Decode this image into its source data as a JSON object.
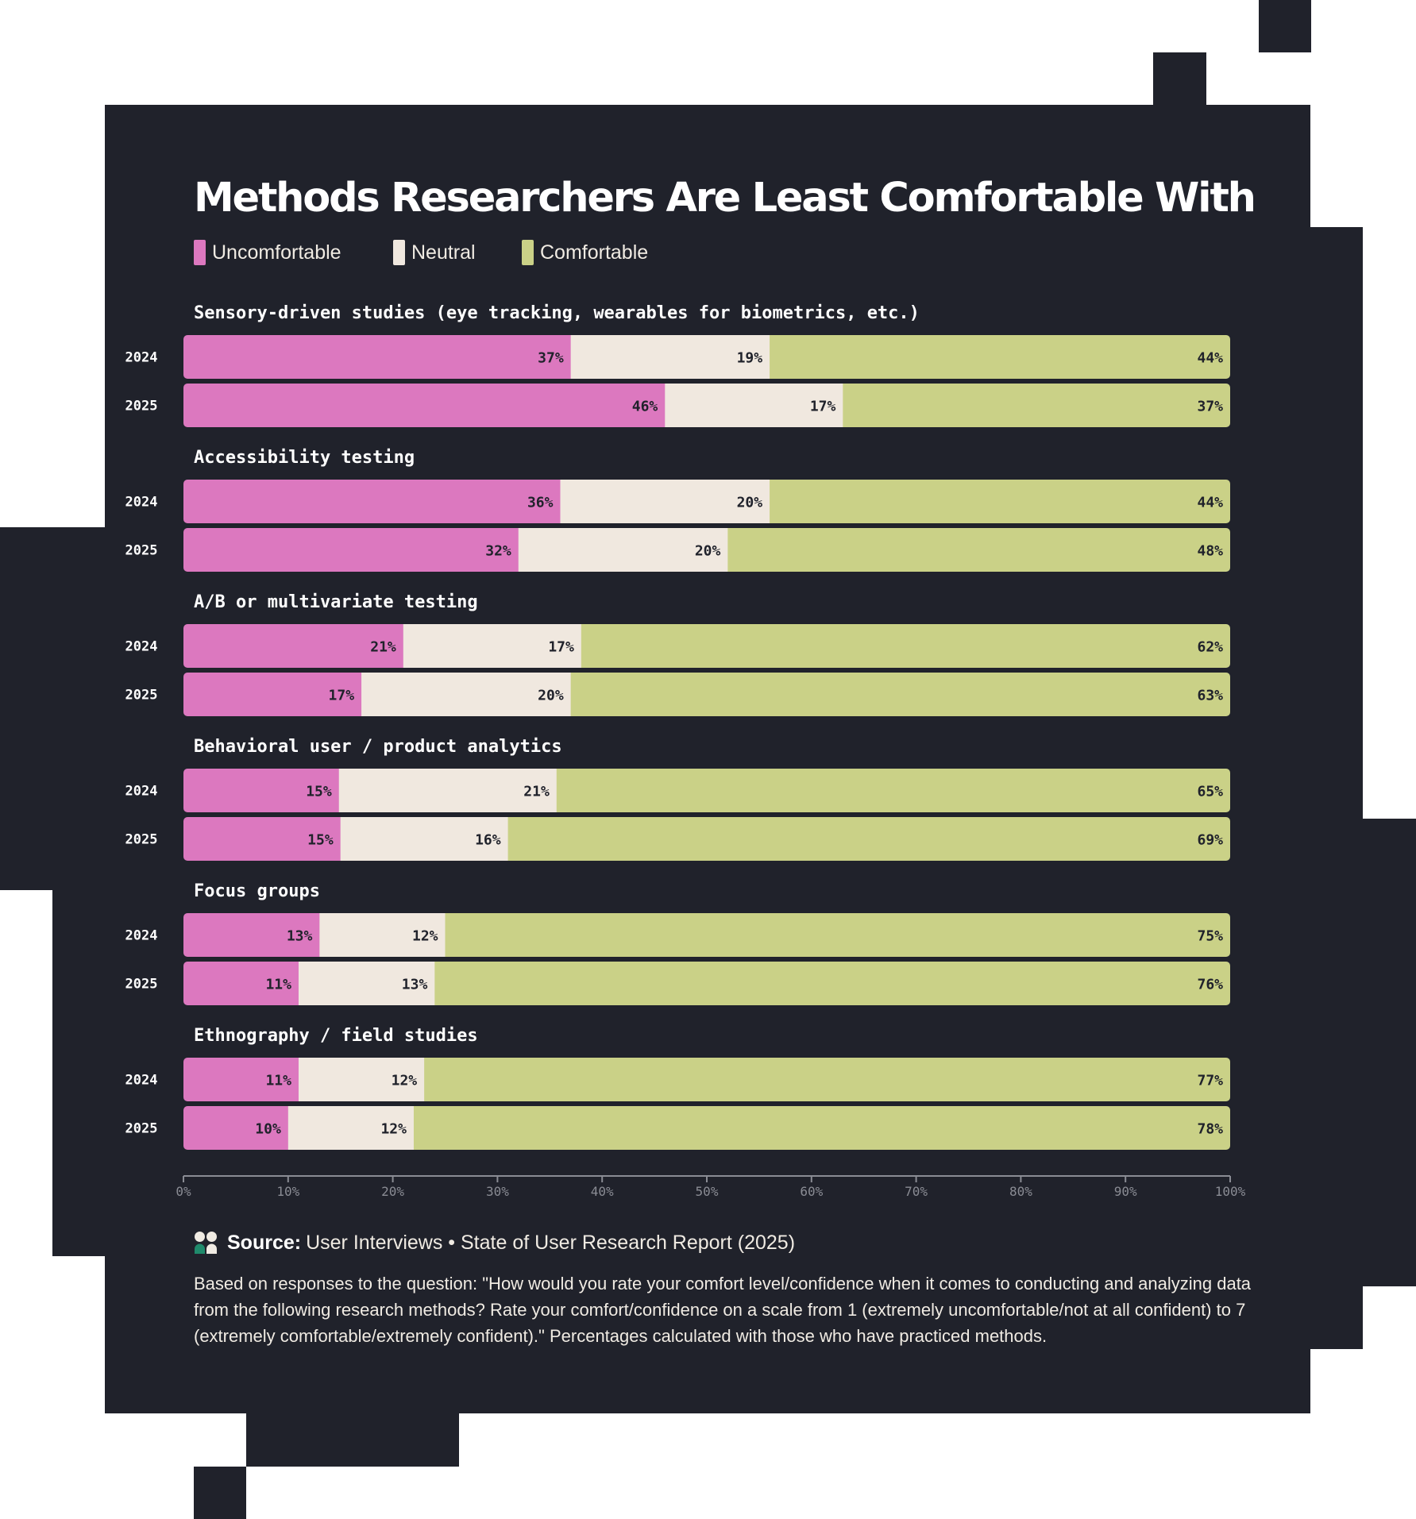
{
  "title": "Methods Researchers Are Least Comfortable With",
  "legend": [
    {
      "label": "Uncomfortable",
      "color": "#dc78bf"
    },
    {
      "label": "Neutral",
      "color": "#f0e8df"
    },
    {
      "label": "Comfortable",
      "color": "#cad187"
    }
  ],
  "source": {
    "label": "Source:",
    "text": "User Interviews • State of User Research Report (2025)"
  },
  "note": "Based on responses to the question: \"How would you rate your comfort level/confidence when it comes to conducting and analyzing data from the following research methods? Rate your comfort/confidence on a scale from 1 (extremely uncomfortable/not at all confident) to 7 (extremely comfortable/extremely confident).\" Percentages calculated with those who have practiced methods.",
  "chart_data": {
    "type": "bar",
    "orientation": "horizontal",
    "stacked": true,
    "series_names": [
      "Uncomfortable",
      "Neutral",
      "Comfortable"
    ],
    "groups": [
      {
        "name": "Sensory-driven studies (eye tracking, wearables for biometrics, etc.)",
        "rows": [
          {
            "year": "2024",
            "values": [
              37,
              19,
              44
            ]
          },
          {
            "year": "2025",
            "values": [
              46,
              17,
              37
            ]
          }
        ]
      },
      {
        "name": "Accessibility testing",
        "rows": [
          {
            "year": "2024",
            "values": [
              36,
              20,
              44
            ]
          },
          {
            "year": "2025",
            "values": [
              32,
              20,
              48
            ]
          }
        ]
      },
      {
        "name": "A/B or multivariate testing",
        "rows": [
          {
            "year": "2024",
            "values": [
              21,
              17,
              62
            ]
          },
          {
            "year": "2025",
            "values": [
              17,
              20,
              63
            ]
          }
        ]
      },
      {
        "name": "Behavioral user / product analytics",
        "rows": [
          {
            "year": "2024",
            "values": [
              15,
              21,
              65
            ]
          },
          {
            "year": "2025",
            "values": [
              15,
              16,
              69
            ]
          }
        ]
      },
      {
        "name": "Focus groups",
        "rows": [
          {
            "year": "2024",
            "values": [
              13,
              12,
              75
            ]
          },
          {
            "year": "2025",
            "values": [
              11,
              13,
              76
            ]
          }
        ]
      },
      {
        "name": "Ethnography / field studies",
        "rows": [
          {
            "year": "2024",
            "values": [
              11,
              12,
              77
            ]
          },
          {
            "year": "2025",
            "values": [
              10,
              12,
              78
            ]
          }
        ]
      }
    ],
    "xlim": [
      0,
      100
    ],
    "xticks": [
      "0%",
      "10%",
      "20%",
      "30%",
      "40%",
      "50%",
      "60%",
      "70%",
      "80%",
      "90%",
      "100%"
    ],
    "value_suffix": "%",
    "grid": false
  }
}
